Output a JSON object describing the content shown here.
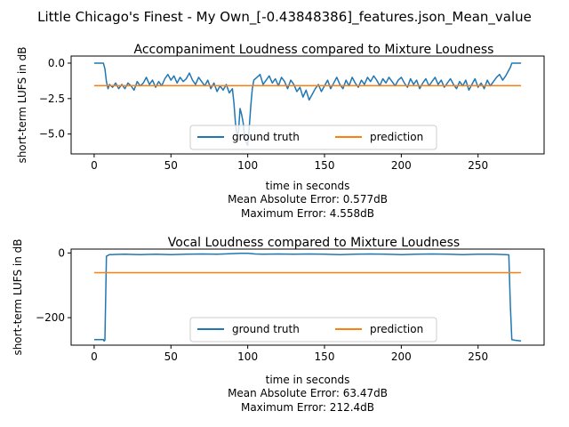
{
  "suptitle": "Little Chicago's Finest - My Own_[-0.43848386]_features.json_Mean_value",
  "colors": {
    "ground_truth": "#1f77b4",
    "prediction": "#ff7f0e",
    "axes": "#000000",
    "background": "#ffffff"
  },
  "chart_data": [
    {
      "type": "line",
      "title": "Accompaniment Loudness compared to Mixture Loudness",
      "xlabel": "time in seconds",
      "ylabel": "short-term LUFS in dB",
      "xlim": [
        -15,
        293
      ],
      "ylim": [
        -6.4,
        0.5
      ],
      "xticks": [
        0,
        50,
        100,
        150,
        200,
        250
      ],
      "xtick_labels": [
        "0",
        "50",
        "100",
        "150",
        "200",
        "250"
      ],
      "yticks": [
        0,
        -2.5,
        -5
      ],
      "ytick_labels": [
        "0.0",
        "−2.5",
        "−5.0"
      ],
      "grid": false,
      "legend": {
        "placement": "lower center",
        "columns": 2
      },
      "stats": [
        "Mean Absolute Error: 0.577dB",
        "Maximum Error: 4.558dB"
      ],
      "series": [
        {
          "name": "ground truth",
          "x": [
            0,
            6,
            7,
            8,
            9,
            10,
            12,
            14,
            16,
            18,
            20,
            22,
            24,
            26,
            28,
            30,
            32,
            34,
            36,
            38,
            40,
            42,
            44,
            46,
            48,
            50,
            52,
            54,
            56,
            58,
            60,
            62,
            64,
            66,
            68,
            70,
            72,
            74,
            76,
            78,
            80,
            82,
            84,
            86,
            88,
            90,
            91,
            92,
            93,
            94,
            95,
            96,
            97,
            98,
            99,
            100,
            101,
            102,
            103,
            104,
            106,
            108,
            110,
            112,
            114,
            116,
            118,
            120,
            122,
            124,
            126,
            128,
            130,
            132,
            134,
            136,
            138,
            140,
            142,
            144,
            146,
            148,
            150,
            152,
            154,
            156,
            158,
            160,
            162,
            164,
            166,
            168,
            170,
            172,
            174,
            176,
            178,
            180,
            182,
            184,
            186,
            188,
            190,
            192,
            194,
            196,
            198,
            200,
            202,
            204,
            206,
            208,
            210,
            212,
            214,
            216,
            218,
            220,
            222,
            224,
            226,
            228,
            230,
            232,
            234,
            236,
            238,
            240,
            242,
            244,
            246,
            248,
            250,
            252,
            254,
            256,
            258,
            260,
            262,
            264,
            266,
            268,
            270,
            271,
            272,
            274,
            276,
            278
          ],
          "y": [
            0,
            0,
            -0.4,
            -1.3,
            -1.8,
            -1.5,
            -1.7,
            -1.4,
            -1.8,
            -1.5,
            -1.8,
            -1.4,
            -1.6,
            -1.9,
            -1.3,
            -1.6,
            -1.4,
            -1.0,
            -1.5,
            -1.2,
            -1.7,
            -1.3,
            -1.6,
            -1.1,
            -0.8,
            -1.2,
            -0.9,
            -1.4,
            -1.0,
            -1.3,
            -1.1,
            -0.7,
            -1.2,
            -1.5,
            -1.0,
            -1.3,
            -1.6,
            -1.2,
            -1.8,
            -1.4,
            -2.0,
            -1.6,
            -1.9,
            -1.5,
            -2.1,
            -1.8,
            -2.8,
            -4.2,
            -5.1,
            -4.8,
            -3.2,
            -3.6,
            -4.2,
            -5.2,
            -5.6,
            -5.8,
            -4.5,
            -3.0,
            -1.8,
            -1.2,
            -1.0,
            -0.8,
            -1.5,
            -1.2,
            -0.9,
            -1.4,
            -1.1,
            -1.6,
            -1.0,
            -1.3,
            -1.8,
            -1.2,
            -1.5,
            -2.0,
            -1.7,
            -2.4,
            -1.9,
            -2.6,
            -2.2,
            -1.8,
            -1.5,
            -2.0,
            -1.6,
            -1.2,
            -1.8,
            -1.4,
            -1.0,
            -1.5,
            -1.8,
            -1.2,
            -1.6,
            -1.0,
            -1.4,
            -1.7,
            -1.2,
            -1.5,
            -1.0,
            -1.3,
            -0.9,
            -1.2,
            -1.6,
            -1.1,
            -1.4,
            -1.0,
            -1.3,
            -1.6,
            -1.2,
            -1.0,
            -1.4,
            -1.7,
            -1.1,
            -1.5,
            -1.2,
            -1.8,
            -1.4,
            -1.1,
            -1.6,
            -1.3,
            -1.0,
            -1.5,
            -1.2,
            -1.7,
            -1.4,
            -1.1,
            -1.5,
            -1.8,
            -1.3,
            -1.6,
            -1.2,
            -1.9,
            -1.5,
            -1.1,
            -1.7,
            -1.4,
            -1.8,
            -1.2,
            -1.6,
            -1.3,
            -1.0,
            -0.8,
            -1.2,
            -0.9,
            -0.5,
            -0.3,
            0,
            0,
            0,
            0
          ]
        },
        {
          "name": "prediction",
          "x": [
            0,
            278
          ],
          "y": [
            -1.58,
            -1.58
          ]
        }
      ]
    },
    {
      "type": "line",
      "title": "Vocal Loudness compared to Mixture Loudness",
      "xlabel": "time in seconds",
      "ylabel": "short-term LUFS in dB",
      "xlim": [
        -15,
        293
      ],
      "ylim": [
        -285,
        12
      ],
      "xticks": [
        0,
        50,
        100,
        150,
        200,
        250
      ],
      "xtick_labels": [
        "0",
        "50",
        "100",
        "150",
        "200",
        "250"
      ],
      "yticks": [
        0,
        -200
      ],
      "ytick_labels": [
        "0",
        "−200"
      ],
      "grid": false,
      "legend": {
        "placement": "lower center",
        "columns": 2
      },
      "stats": [
        "Mean Absolute Error: 63.47dB",
        "Maximum Error: 212.4dB"
      ],
      "series": [
        {
          "name": "ground truth",
          "x": [
            0,
            6,
            6.5,
            7,
            8,
            10,
            20,
            30,
            40,
            50,
            60,
            70,
            80,
            90,
            95,
            100,
            105,
            110,
            120,
            130,
            140,
            150,
            160,
            170,
            180,
            190,
            200,
            210,
            220,
            230,
            240,
            250,
            260,
            268,
            270,
            271,
            272,
            274,
            276,
            278
          ],
          "y": [
            -268,
            -268,
            -272,
            -270,
            -10,
            -5,
            -4,
            -5,
            -4,
            -5,
            -4,
            -3,
            -4,
            -2,
            -1,
            -1,
            -3,
            -4,
            -3,
            -4,
            -3,
            -4,
            -5,
            -4,
            -3,
            -4,
            -5,
            -4,
            -3,
            -4,
            -5,
            -4,
            -4,
            -5,
            -6,
            -160,
            -268,
            -270,
            -271,
            -272
          ]
        },
        {
          "name": "prediction",
          "x": [
            0,
            278
          ],
          "y": [
            -61,
            -61
          ]
        }
      ]
    }
  ]
}
